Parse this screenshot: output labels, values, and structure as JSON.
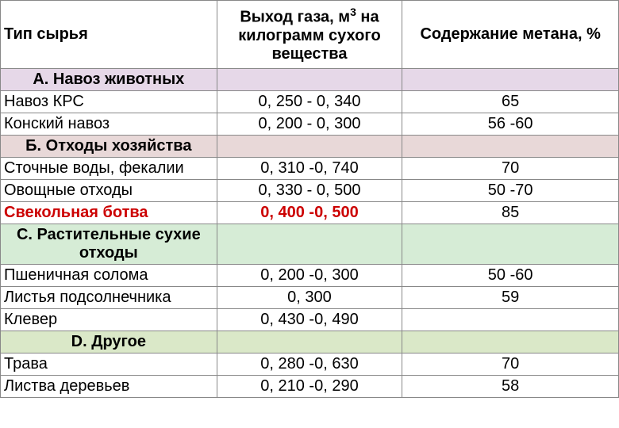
{
  "headers": {
    "col1": "Тип сырья",
    "col2_line1": "Выход газа, м",
    "col2_sup": "3",
    "col2_line2": " на килограмм сухого вещества",
    "col3": "Содержание метана, %"
  },
  "sections": {
    "A": {
      "title": "А. Навоз животных",
      "bg": "#e6d8e8"
    },
    "B": {
      "title": "Б. Отходы хозяйства",
      "bg": "#e8d8d8"
    },
    "C": {
      "title": "С. Растительные сухие отходы",
      "bg": "#d6ecd6"
    },
    "D": {
      "title": "D. Другое",
      "bg": "#dae8c8"
    }
  },
  "rows": {
    "a1": {
      "name": "Навоз КРС",
      "gas": "0, 250 - 0, 340",
      "methane": "65"
    },
    "a2": {
      "name": "Конский навоз",
      "gas": "0, 200 - 0, 300",
      "methane": "56 -60"
    },
    "b1": {
      "name": "Сточные воды, фекалии",
      "gas": "0, 310 -0, 740",
      "methane": "70"
    },
    "b2": {
      "name": "Овощные отходы",
      "gas": "0, 330 - 0, 500",
      "methane": "50 -70"
    },
    "b3": {
      "name": "Свекольная ботва",
      "gas": "0, 400 -0, 500",
      "methane": "85"
    },
    "c1": {
      "name": "Пшеничная солома",
      "gas": "0, 200 -0, 300",
      "methane": "50 -60"
    },
    "c2": {
      "name": "Листья подсолнечника",
      "gas": "0, 300",
      "methane": "59"
    },
    "c3": {
      "name": "Клевер",
      "gas": "0, 430 -0, 490",
      "methane": ""
    },
    "d1": {
      "name": "Трава",
      "gas": "0, 280 -0, 630",
      "methane": "70"
    },
    "d2": {
      "name": "Листва деревьев",
      "gas": "0, 210 -0, 290",
      "methane": "58"
    }
  },
  "styling": {
    "red_color": "#cc0000",
    "border_color": "#888888",
    "font_size": 20
  }
}
